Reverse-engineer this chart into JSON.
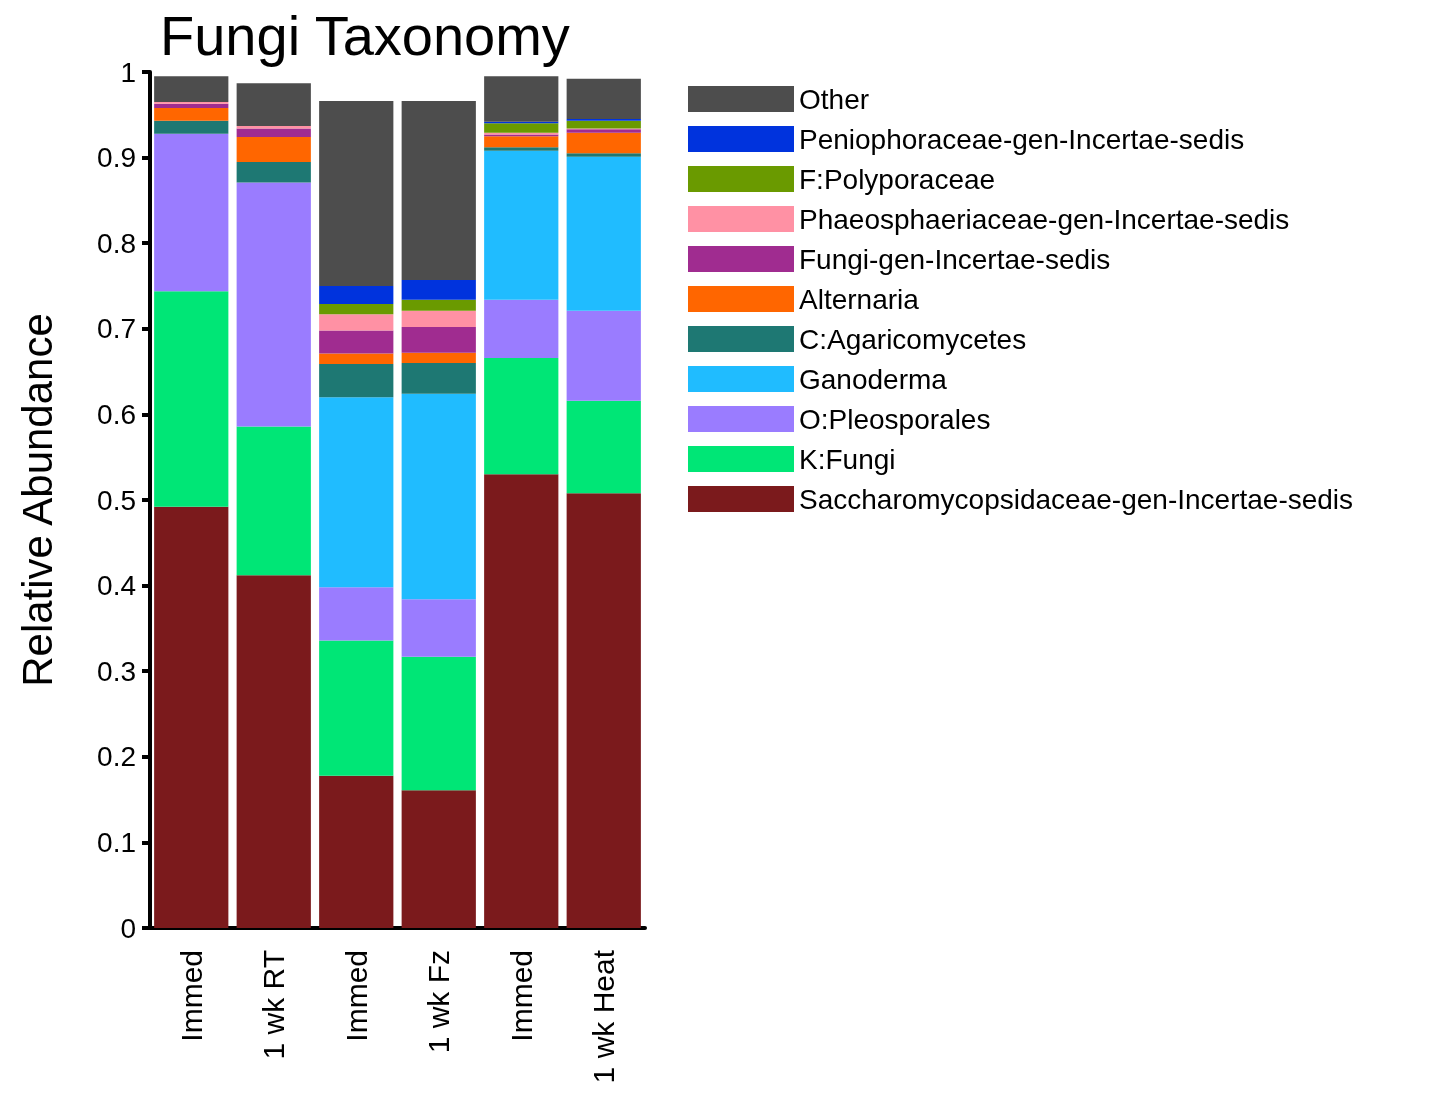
{
  "chart_data": {
    "type": "bar",
    "title": "Fungi Taxonomy",
    "ylabel": "Relative Abundance",
    "stacked": true,
    "categories": [
      "Immed",
      "1 wk RT",
      "Immed",
      "1 wk Fz",
      "Immed",
      "1 wk Heat"
    ],
    "series": [
      {
        "name": "Saccharomycopsidaceae-gen-Incertae-sedis",
        "color": "#7b1a1c",
        "values": [
          0.492,
          0.412,
          0.178,
          0.161,
          0.53,
          0.508
        ]
      },
      {
        "name": "K:Fungi",
        "color": "#00e676",
        "values": [
          0.252,
          0.174,
          0.158,
          0.156,
          0.136,
          0.108
        ]
      },
      {
        "name": "O:Pleosporales",
        "color": "#9a7cff",
        "values": [
          0.184,
          0.285,
          0.062,
          0.067,
          0.068,
          0.105
        ]
      },
      {
        "name": "Ganoderma",
        "color": "#20bcff",
        "values": [
          0,
          0,
          0.222,
          0.24,
          0.174,
          0.18
        ]
      },
      {
        "name": "C:Agaricomycetes",
        "color": "#1e7873",
        "values": [
          0.015,
          0.024,
          0.039,
          0.036,
          0.004,
          0.004
        ]
      },
      {
        "name": "Alternaria",
        "color": "#ff6600",
        "values": [
          0.015,
          0.029,
          0.012,
          0.012,
          0.013,
          0.024
        ]
      },
      {
        "name": "Fungi-gen-Incertae-sedis",
        "color": "#a02c90",
        "values": [
          0.005,
          0.01,
          0.027,
          0.03,
          0.002,
          0.004
        ]
      },
      {
        "name": "Phaeosphaeriaceae-gen-Incertae-sedis",
        "color": "#ff91a4",
        "values": [
          0.002,
          0.003,
          0.019,
          0.019,
          0.002,
          0.001
        ]
      },
      {
        "name": "F:Polyporaceae",
        "color": "#6a9a00",
        "values": [
          0,
          0,
          0.012,
          0.013,
          0.011,
          0.009
        ]
      },
      {
        "name": "Peniophoraceae-gen-Incertae-sedis",
        "color": "#0033dd",
        "values": [
          0,
          0,
          0.021,
          0.023,
          0.002,
          0.002
        ]
      },
      {
        "name": "Other",
        "color": "#4d4d4d",
        "values": [
          0.03,
          0.05,
          0.216,
          0.209,
          0.053,
          0.047
        ]
      }
    ],
    "ylim": [
      0,
      1
    ],
    "yticks": [
      0,
      0.1,
      0.2,
      0.3,
      0.4,
      0.5,
      0.6,
      0.7,
      0.8,
      0.9,
      1
    ],
    "grid": false,
    "legend": "right"
  }
}
